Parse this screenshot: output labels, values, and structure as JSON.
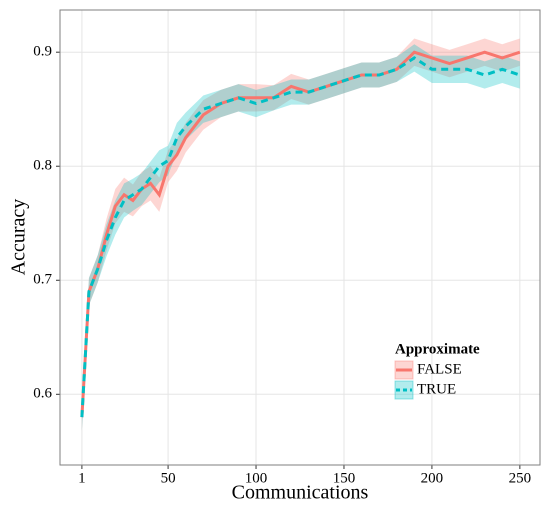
{
  "chart_data": {
    "type": "line",
    "x_label": "Communications",
    "y_label": "Accuracy",
    "x": [
      1,
      5,
      10,
      15,
      20,
      25,
      30,
      35,
      40,
      45,
      50,
      55,
      60,
      70,
      80,
      90,
      100,
      110,
      120,
      130,
      140,
      150,
      160,
      170,
      180,
      190,
      200,
      210,
      220,
      230,
      240,
      250
    ],
    "series": [
      {
        "name": "FALSE",
        "color": "#F8766D",
        "dash": false,
        "values": [
          0.58,
          0.69,
          0.71,
          0.74,
          0.765,
          0.775,
          0.77,
          0.78,
          0.785,
          0.775,
          0.8,
          0.81,
          0.825,
          0.845,
          0.855,
          0.86,
          0.86,
          0.86,
          0.87,
          0.865,
          0.87,
          0.875,
          0.88,
          0.88,
          0.885,
          0.9,
          0.895,
          0.89,
          0.895,
          0.9,
          0.895,
          0.9
        ],
        "lower": [
          0.568,
          0.678,
          0.698,
          0.726,
          0.75,
          0.76,
          0.756,
          0.765,
          0.77,
          0.76,
          0.786,
          0.796,
          0.812,
          0.832,
          0.843,
          0.848,
          0.848,
          0.849,
          0.859,
          0.854,
          0.859,
          0.864,
          0.869,
          0.869,
          0.874,
          0.888,
          0.883,
          0.878,
          0.883,
          0.888,
          0.883,
          0.888
        ],
        "upper": [
          0.592,
          0.702,
          0.722,
          0.754,
          0.78,
          0.79,
          0.784,
          0.795,
          0.8,
          0.79,
          0.814,
          0.824,
          0.838,
          0.858,
          0.867,
          0.872,
          0.872,
          0.871,
          0.881,
          0.876,
          0.881,
          0.886,
          0.891,
          0.891,
          0.896,
          0.912,
          0.907,
          0.902,
          0.907,
          0.912,
          0.907,
          0.912
        ]
      },
      {
        "name": "TRUE",
        "color": "#00BFC4",
        "dash": true,
        "values": [
          0.58,
          0.69,
          0.71,
          0.735,
          0.755,
          0.77,
          0.775,
          0.78,
          0.79,
          0.8,
          0.805,
          0.825,
          0.835,
          0.85,
          0.855,
          0.86,
          0.855,
          0.86,
          0.865,
          0.865,
          0.87,
          0.875,
          0.88,
          0.88,
          0.885,
          0.895,
          0.885,
          0.885,
          0.885,
          0.88,
          0.885,
          0.88
        ],
        "lower": [
          0.568,
          0.678,
          0.698,
          0.721,
          0.74,
          0.755,
          0.761,
          0.766,
          0.776,
          0.786,
          0.792,
          0.812,
          0.823,
          0.838,
          0.843,
          0.848,
          0.843,
          0.849,
          0.854,
          0.854,
          0.859,
          0.864,
          0.869,
          0.869,
          0.874,
          0.883,
          0.873,
          0.873,
          0.873,
          0.868,
          0.873,
          0.868
        ],
        "upper": [
          0.592,
          0.702,
          0.722,
          0.749,
          0.77,
          0.785,
          0.789,
          0.794,
          0.804,
          0.814,
          0.818,
          0.838,
          0.847,
          0.862,
          0.867,
          0.872,
          0.867,
          0.871,
          0.876,
          0.876,
          0.881,
          0.886,
          0.891,
          0.891,
          0.896,
          0.907,
          0.897,
          0.897,
          0.897,
          0.892,
          0.897,
          0.892
        ]
      }
    ],
    "xlim": [
      -11.45,
      261.45
    ],
    "xticks": [
      1,
      50,
      100,
      150,
      200,
      250
    ],
    "ylim": [
      0.538,
      0.937
    ],
    "yticks": [
      0.6,
      0.7,
      0.8,
      0.9
    ],
    "grid": true,
    "legend_title": "Approximate",
    "legend_position": "right"
  }
}
